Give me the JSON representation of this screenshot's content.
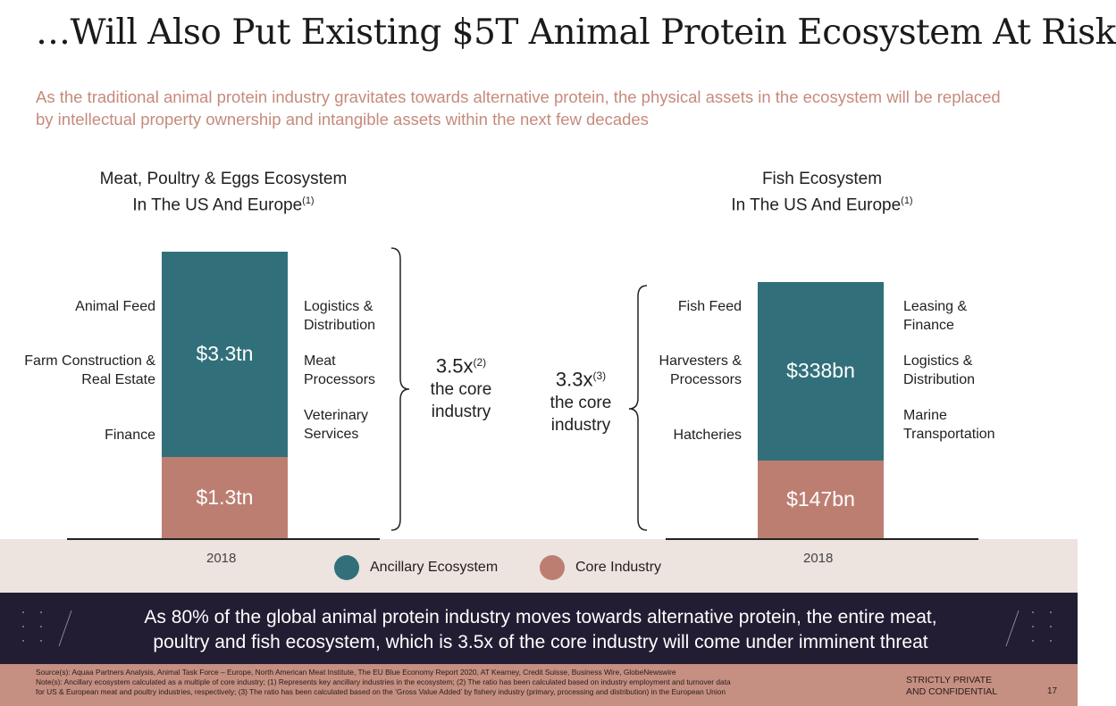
{
  "page": {
    "title": "…Will Also Put Existing $5T Animal Protein Ecosystem At Risk",
    "subtitle": "As the traditional animal protein industry gravitates towards alternative protein, the physical assets in the ecosystem will be replaced by intellectual property ownership and intangible assets within the next few decades"
  },
  "colors": {
    "ancillary": "#31707a",
    "core": "#bd7e72",
    "subtitle": "#c68a7b",
    "banner": "#221d33",
    "footer": "#c58f81",
    "band": "#ede3df"
  },
  "chart_data": [
    {
      "type": "bar",
      "stacked": true,
      "title_line1": "Meat, Poultry & Eggs Ecosystem",
      "title_line2": "In The US And Europe",
      "title_note": "(1)",
      "categories": [
        "2018"
      ],
      "series": [
        {
          "name": "Core Industry",
          "values": [
            1.3
          ],
          "label": "$1.3tn"
        },
        {
          "name": "Ancillary Ecosystem",
          "values": [
            3.3
          ],
          "label": "$3.3tn"
        }
      ],
      "left_labels": [
        "Animal Feed",
        "Farm Construction & Real Estate",
        "Finance"
      ],
      "right_labels": [
        "Logistics & Distribution",
        "Meat Processors",
        "Veterinary Services"
      ],
      "multiplier": "3.5x",
      "multiplier_note": "(2)",
      "multiplier_text_1": "the core",
      "multiplier_text_2": "industry"
    },
    {
      "type": "bar",
      "stacked": true,
      "title_line1": "Fish Ecosystem",
      "title_line2": "In The US And Europe",
      "title_note": "(1)",
      "categories": [
        "2018"
      ],
      "series": [
        {
          "name": "Core Industry",
          "values": [
            147
          ],
          "label": "$147bn"
        },
        {
          "name": "Ancillary Ecosystem",
          "values": [
            338
          ],
          "label": "$338bn"
        }
      ],
      "left_labels": [
        "Fish Feed",
        "Harvesters & Processors",
        "Hatcheries"
      ],
      "right_labels": [
        "Leasing & Finance",
        "Logistics & Distribution",
        "Marine Transportation"
      ],
      "multiplier": "3.3x",
      "multiplier_note": "(3)",
      "multiplier_text_1": "the core",
      "multiplier_text_2": "industry"
    }
  ],
  "legend": {
    "ancillary": "Ancillary Ecosystem",
    "core": "Core Industry"
  },
  "banner": {
    "line1": "As 80% of the global animal protein industry moves towards alternative protein, the entire meat,",
    "line2": "poultry and fish ecosystem, which is 3.5x of the core industry will come under imminent threat"
  },
  "footer": {
    "sources": "Source(s): Aquaa Partners Analysis, Animal Task Force – Europe, North American Meat Institute, The EU Blue Economy Report 2020, AT Kearney, Credit Suisse, Business Wire, GlobeNewswire",
    "notes1": "Note(s): Ancillary ecosystem calculated as a multiple of core industry; (1) Represents key ancillary industries in the ecosystem; (2) The ratio has been calculated based on industry employment and turnover data",
    "notes2": "for US & European meat and poultry industries, respectively; (3) The ratio has been calculated based on the ‘Gross Value Added’ by fishery industry (primary, processing and distribution) in the European Union",
    "confidential1": "STRICTLY PRIVATE",
    "confidential2": "AND CONFIDENTIAL",
    "page_number": "17"
  }
}
